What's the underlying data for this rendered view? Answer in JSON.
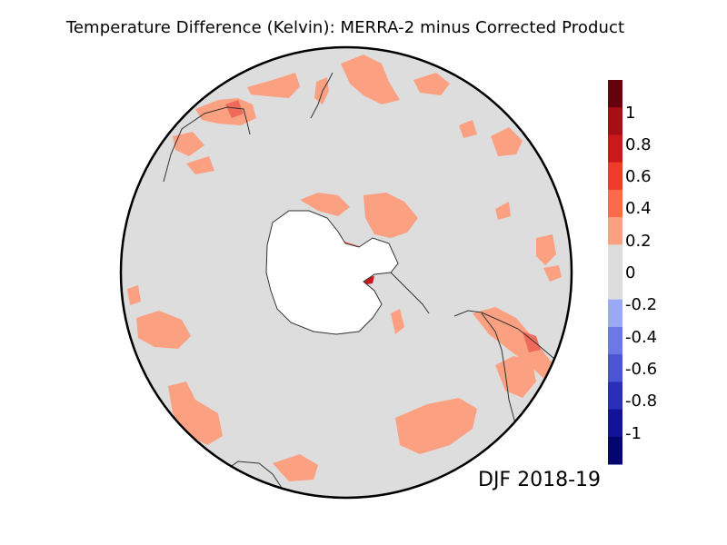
{
  "title": "Temperature Difference (Kelvin): MERRA-2 minus Corrected Product",
  "season_label": "DJF 2018-19",
  "colorbar": {
    "tick_labels": [
      "1",
      "0.8",
      "0.6",
      "0.4",
      "0.2",
      "0",
      "-0.2",
      "-0.4",
      "-0.6",
      "-0.8",
      "-1"
    ],
    "colors_top_to_bottom": [
      "#67000d",
      "#a50f15",
      "#cb181d",
      "#ef3b2c",
      "#fb6a4a",
      "#fca082",
      "#dddddd",
      "#dddddd",
      "#9aa9f5",
      "#6b79e6",
      "#4a55d4",
      "#2a2fb8",
      "#13139a",
      "#050570"
    ]
  },
  "colors": {
    "background_field": "#dddddd",
    "ice_sheet": "#ffffff",
    "positive_small": "#fca082",
    "positive_medium": "#ef6a5a",
    "positive_strong": "#cb181d",
    "coastline": "#333333"
  }
}
